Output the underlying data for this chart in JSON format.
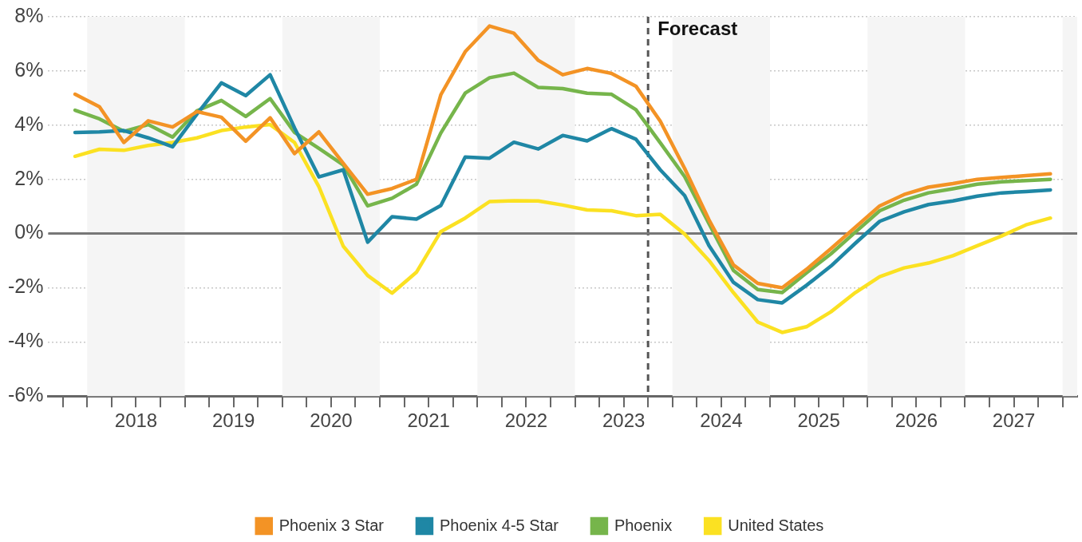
{
  "chart_data": {
    "type": "line",
    "x": [
      2017.875,
      2018.125,
      2018.375,
      2018.625,
      2018.875,
      2019.125,
      2019.375,
      2019.625,
      2019.875,
      2020.125,
      2020.375,
      2020.625,
      2020.875,
      2021.125,
      2021.375,
      2021.625,
      2021.875,
      2022.125,
      2022.375,
      2022.625,
      2022.875,
      2023.125,
      2023.375,
      2023.625,
      2023.875,
      2024.125,
      2024.375,
      2024.625,
      2024.875,
      2025.125,
      2025.375,
      2025.625,
      2025.875,
      2026.125,
      2026.375,
      2026.625,
      2026.875,
      2027.125,
      2027.375,
      2027.625,
      2027.875
    ],
    "series": [
      {
        "name": "Phoenix 3 Star",
        "color": "#f39325",
        "values": [
          5.14,
          4.68,
          3.36,
          4.16,
          3.93,
          4.5,
          4.29,
          3.41,
          4.27,
          2.95,
          3.75,
          2.59,
          1.45,
          1.66,
          2.0,
          5.12,
          6.71,
          7.66,
          7.39,
          6.39,
          5.86,
          6.09,
          5.91,
          5.44,
          4.15,
          2.4,
          0.5,
          -1.16,
          -1.84,
          -2.0,
          -1.32,
          -0.56,
          0.23,
          1.02,
          1.44,
          1.71,
          1.84,
          2.0,
          2.07,
          2.14,
          2.2
        ]
      },
      {
        "name": "Phoenix 4-5 Star",
        "color": "#1f87a5",
        "values": [
          3.73,
          3.75,
          3.8,
          3.53,
          3.2,
          4.41,
          5.56,
          5.09,
          5.86,
          3.9,
          2.09,
          2.35,
          -0.32,
          0.62,
          0.53,
          1.03,
          2.82,
          2.78,
          3.37,
          3.12,
          3.62,
          3.42,
          3.87,
          3.48,
          2.35,
          1.4,
          -0.45,
          -1.8,
          -2.44,
          -2.56,
          -1.91,
          -1.2,
          -0.36,
          0.45,
          0.8,
          1.07,
          1.2,
          1.38,
          1.5,
          1.55,
          1.61
        ]
      },
      {
        "name": "Phoenix",
        "color": "#76b54b",
        "values": [
          4.55,
          4.23,
          3.77,
          4.02,
          3.56,
          4.53,
          4.91,
          4.32,
          4.98,
          3.73,
          3.14,
          2.53,
          1.02,
          1.3,
          1.82,
          3.71,
          5.18,
          5.75,
          5.92,
          5.39,
          5.35,
          5.18,
          5.14,
          4.57,
          3.35,
          2.1,
          0.36,
          -1.36,
          -2.07,
          -2.18,
          -1.45,
          -0.75,
          0.05,
          0.84,
          1.23,
          1.5,
          1.65,
          1.82,
          1.91,
          1.95,
          2.0
        ]
      },
      {
        "name": "United States",
        "color": "#fbe122",
        "values": [
          2.85,
          3.11,
          3.07,
          3.25,
          3.36,
          3.53,
          3.8,
          3.93,
          4.02,
          3.36,
          1.73,
          -0.47,
          -1.55,
          -2.2,
          -1.43,
          0.07,
          0.57,
          1.18,
          1.21,
          1.2,
          1.05,
          0.87,
          0.84,
          0.66,
          0.71,
          -0.02,
          -1.0,
          -2.18,
          -3.27,
          -3.65,
          -3.44,
          -2.89,
          -2.18,
          -1.59,
          -1.27,
          -1.09,
          -0.82,
          -0.45,
          -0.09,
          0.32,
          0.57
        ]
      }
    ],
    "xlim": [
      2017.6,
      2028.15
    ],
    "xticks": [
      {
        "value": 2017.75,
        "label": null
      },
      {
        "value": 2018,
        "label": null
      },
      {
        "value": 2018.25,
        "label": null
      },
      {
        "value": 2018.5,
        "label": "2018"
      },
      {
        "value": 2018.75,
        "label": null
      },
      {
        "value": 2019,
        "label": null
      },
      {
        "value": 2019.25,
        "label": null
      },
      {
        "value": 2019.5,
        "label": "2019"
      },
      {
        "value": 2019.75,
        "label": null
      },
      {
        "value": 2020,
        "label": null
      },
      {
        "value": 2020.25,
        "label": null
      },
      {
        "value": 2020.5,
        "label": "2020"
      },
      {
        "value": 2020.75,
        "label": null
      },
      {
        "value": 2021,
        "label": null
      },
      {
        "value": 2021.25,
        "label": null
      },
      {
        "value": 2021.5,
        "label": "2021"
      },
      {
        "value": 2021.75,
        "label": null
      },
      {
        "value": 2022,
        "label": null
      },
      {
        "value": 2022.25,
        "label": null
      },
      {
        "value": 2022.5,
        "label": "2022"
      },
      {
        "value": 2022.75,
        "label": null
      },
      {
        "value": 2023,
        "label": null
      },
      {
        "value": 2023.25,
        "label": null
      },
      {
        "value": 2023.5,
        "label": "2023"
      },
      {
        "value": 2023.75,
        "label": null
      },
      {
        "value": 2024,
        "label": null
      },
      {
        "value": 2024.25,
        "label": null
      },
      {
        "value": 2024.5,
        "label": "2024"
      },
      {
        "value": 2024.75,
        "label": null
      },
      {
        "value": 2025,
        "label": null
      },
      {
        "value": 2025.25,
        "label": null
      },
      {
        "value": 2025.5,
        "label": "2025"
      },
      {
        "value": 2025.75,
        "label": null
      },
      {
        "value": 2026,
        "label": null
      },
      {
        "value": 2026.25,
        "label": null
      },
      {
        "value": 2026.5,
        "label": "2026"
      },
      {
        "value": 2026.75,
        "label": null
      },
      {
        "value": 2027,
        "label": null
      },
      {
        "value": 2027.25,
        "label": null
      },
      {
        "value": 2027.5,
        "label": "2027"
      },
      {
        "value": 2027.75,
        "label": null
      },
      {
        "value": 2028,
        "label": null
      }
    ],
    "ylim": [
      -6,
      8
    ],
    "yticks": [
      {
        "value": -6,
        "label": "-6%"
      },
      {
        "value": -4,
        "label": "-4%"
      },
      {
        "value": -2,
        "label": "-2%"
      },
      {
        "value": 0,
        "label": "0%"
      },
      {
        "value": 2,
        "label": "2%"
      },
      {
        "value": 4,
        "label": "4%"
      },
      {
        "value": 6,
        "label": "6%"
      },
      {
        "value": 8,
        "label": "8%"
      }
    ],
    "grid": "y",
    "legend": "bottom",
    "ref_lines": [
      {
        "axis": "x",
        "value": 2023.75,
        "label": "Forecast",
        "color": "#555555",
        "line_style": "dashed"
      },
      {
        "axis": "y",
        "value": 0,
        "color": "#777777",
        "line_style": "solid"
      }
    ],
    "bands": [
      {
        "axis": "x",
        "from": 2018,
        "to": 2019,
        "color": "#f5f5f5"
      },
      {
        "axis": "x",
        "from": 2020,
        "to": 2021,
        "color": "#f5f5f5"
      },
      {
        "axis": "x",
        "from": 2022,
        "to": 2023,
        "color": "#f5f5f5"
      },
      {
        "axis": "x",
        "from": 2024,
        "to": 2025,
        "color": "#f5f5f5"
      },
      {
        "axis": "x",
        "from": 2026,
        "to": 2027,
        "color": "#f5f5f5"
      },
      {
        "axis": "x",
        "from": 2028,
        "to": 2028.15,
        "color": "#f5f5f5"
      }
    ]
  }
}
